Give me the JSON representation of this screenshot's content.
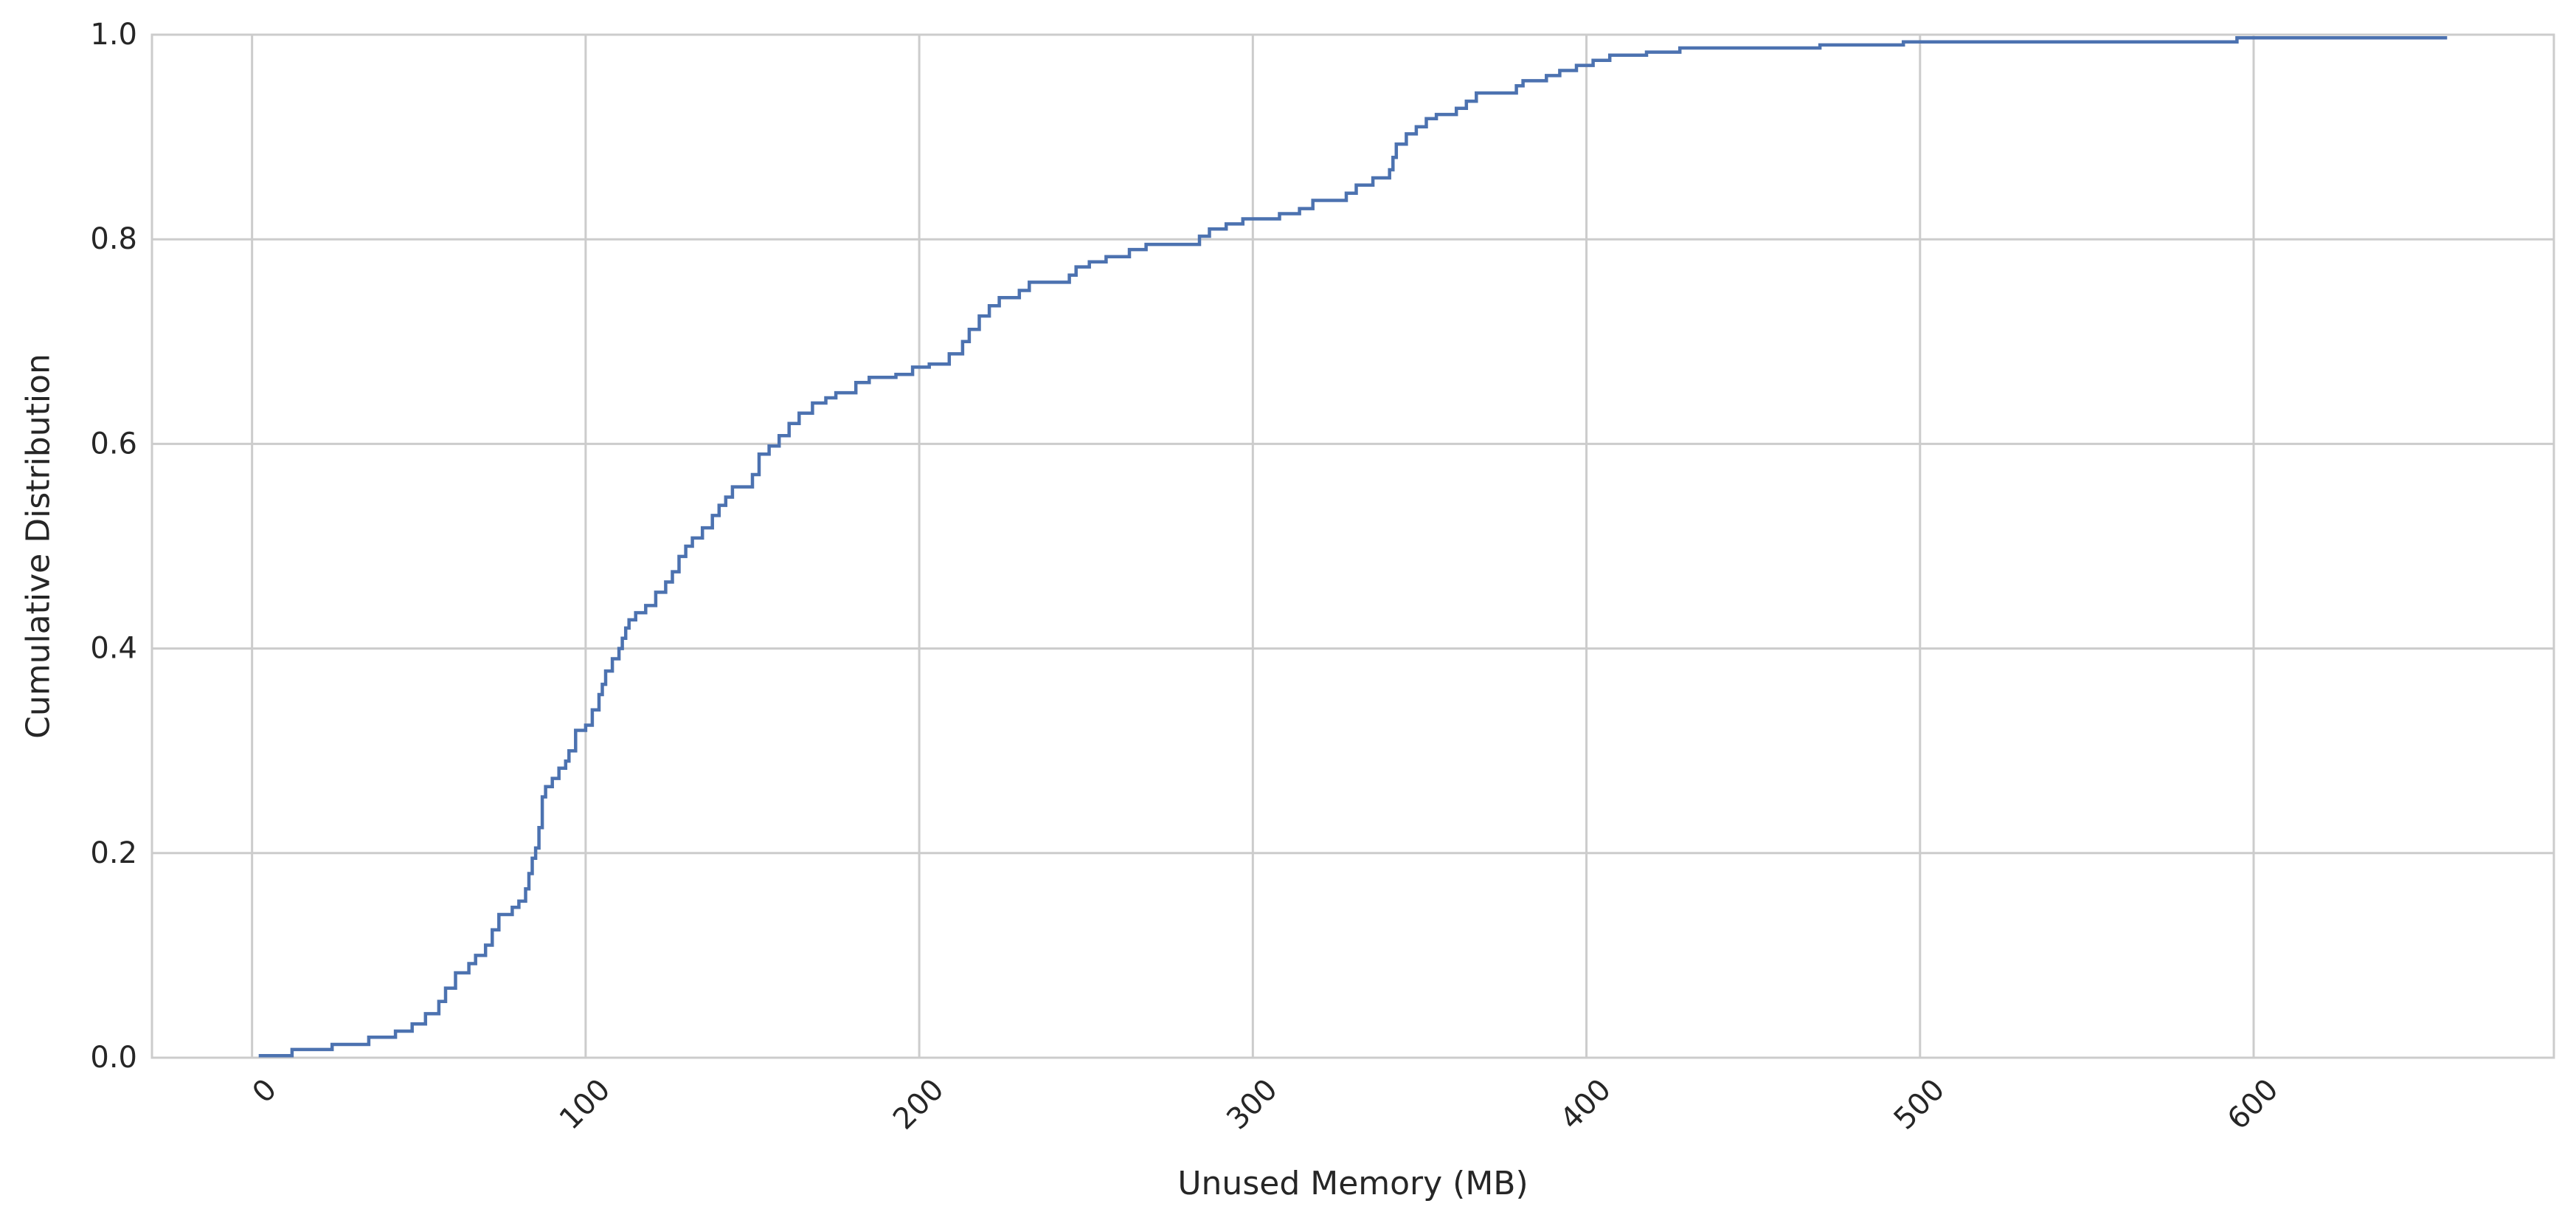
{
  "chart_data": {
    "type": "line",
    "subtype": "ecdf-step",
    "title": "",
    "xlabel": "Unused Memory (MB)",
    "ylabel": "Cumulative Distribution",
    "xlim": [
      -30,
      690
    ],
    "ylim": [
      0.0,
      1.0
    ],
    "x_ticks": [
      0,
      100,
      200,
      300,
      400,
      500,
      600
    ],
    "x_tick_labels": [
      "0",
      "100",
      "200",
      "300",
      "400",
      "500",
      "600"
    ],
    "y_ticks": [
      0.0,
      0.2,
      0.4,
      0.6,
      0.8,
      1.0
    ],
    "y_tick_labels": [
      "0.0",
      "0.2",
      "0.4",
      "0.6",
      "0.8",
      "1.0"
    ],
    "x_tick_rotation_deg": 45,
    "grid": true,
    "legend": "none",
    "colors": {
      "line": "#4c72b0",
      "grid": "#cccccc",
      "spine": "#cccccc",
      "text": "#262626",
      "background": "#ffffff"
    },
    "series": [
      {
        "points": [
          [
            2,
            0.002
          ],
          [
            12,
            0.008
          ],
          [
            24,
            0.013
          ],
          [
            35,
            0.02
          ],
          [
            43,
            0.026
          ],
          [
            48,
            0.033
          ],
          [
            52,
            0.043
          ],
          [
            56,
            0.055
          ],
          [
            58,
            0.068
          ],
          [
            61,
            0.083
          ],
          [
            65,
            0.092
          ],
          [
            67,
            0.1
          ],
          [
            70,
            0.11
          ],
          [
            72,
            0.125
          ],
          [
            74,
            0.14
          ],
          [
            78,
            0.147
          ],
          [
            80,
            0.153
          ],
          [
            82,
            0.165
          ],
          [
            83,
            0.18
          ],
          [
            84,
            0.195
          ],
          [
            85,
            0.205
          ],
          [
            86,
            0.225
          ],
          [
            87,
            0.255
          ],
          [
            88,
            0.265
          ],
          [
            90,
            0.273
          ],
          [
            92,
            0.283
          ],
          [
            94,
            0.29
          ],
          [
            95,
            0.3
          ],
          [
            97,
            0.32
          ],
          [
            100,
            0.325
          ],
          [
            102,
            0.34
          ],
          [
            104,
            0.355
          ],
          [
            105,
            0.365
          ],
          [
            106,
            0.378
          ],
          [
            108,
            0.39
          ],
          [
            110,
            0.4
          ],
          [
            111,
            0.41
          ],
          [
            112,
            0.42
          ],
          [
            113,
            0.428
          ],
          [
            115,
            0.435
          ],
          [
            118,
            0.442
          ],
          [
            121,
            0.455
          ],
          [
            124,
            0.465
          ],
          [
            126,
            0.475
          ],
          [
            128,
            0.49
          ],
          [
            130,
            0.5
          ],
          [
            132,
            0.508
          ],
          [
            135,
            0.518
          ],
          [
            138,
            0.53
          ],
          [
            140,
            0.54
          ],
          [
            142,
            0.548
          ],
          [
            144,
            0.558
          ],
          [
            150,
            0.57
          ],
          [
            152,
            0.59
          ],
          [
            155,
            0.598
          ],
          [
            158,
            0.608
          ],
          [
            161,
            0.62
          ],
          [
            164,
            0.63
          ],
          [
            168,
            0.64
          ],
          [
            172,
            0.645
          ],
          [
            175,
            0.65
          ],
          [
            181,
            0.66
          ],
          [
            185,
            0.665
          ],
          [
            193,
            0.668
          ],
          [
            198,
            0.675
          ],
          [
            203,
            0.678
          ],
          [
            209,
            0.688
          ],
          [
            213,
            0.7
          ],
          [
            215,
            0.712
          ],
          [
            218,
            0.725
          ],
          [
            221,
            0.735
          ],
          [
            224,
            0.743
          ],
          [
            230,
            0.75
          ],
          [
            233,
            0.758
          ],
          [
            245,
            0.765
          ],
          [
            247,
            0.773
          ],
          [
            251,
            0.778
          ],
          [
            256,
            0.783
          ],
          [
            263,
            0.79
          ],
          [
            268,
            0.795
          ],
          [
            284,
            0.803
          ],
          [
            287,
            0.81
          ],
          [
            292,
            0.815
          ],
          [
            297,
            0.82
          ],
          [
            308,
            0.825
          ],
          [
            314,
            0.83
          ],
          [
            318,
            0.838
          ],
          [
            328,
            0.845
          ],
          [
            331,
            0.853
          ],
          [
            336,
            0.86
          ],
          [
            341,
            0.868
          ],
          [
            342,
            0.88
          ],
          [
            343,
            0.893
          ],
          [
            346,
            0.903
          ],
          [
            349,
            0.91
          ],
          [
            352,
            0.918
          ],
          [
            355,
            0.922
          ],
          [
            361,
            0.928
          ],
          [
            364,
            0.935
          ],
          [
            367,
            0.943
          ],
          [
            379,
            0.95
          ],
          [
            381,
            0.955
          ],
          [
            388,
            0.96
          ],
          [
            392,
            0.965
          ],
          [
            397,
            0.97
          ],
          [
            402,
            0.975
          ],
          [
            407,
            0.98
          ],
          [
            418,
            0.983
          ],
          [
            428,
            0.987
          ],
          [
            470,
            0.99
          ],
          [
            495,
            0.993
          ],
          [
            595,
            0.997
          ],
          [
            658,
            0.997
          ]
        ]
      }
    ]
  }
}
